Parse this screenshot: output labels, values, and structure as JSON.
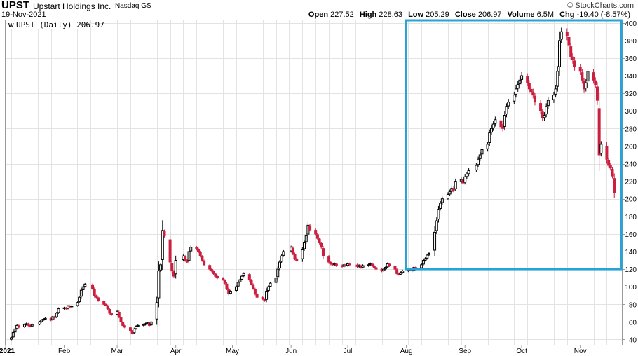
{
  "header": {
    "symbol": "UPST",
    "company": "Upstart Holdings Inc.",
    "exchange": "Nasdaq GS",
    "date": "19-Nov-2021",
    "brand": "© StockCharts.com"
  },
  "quote": {
    "open_label": "Open",
    "open": "227.52",
    "high_label": "High",
    "high": "228.63",
    "low_label": "Low",
    "low": "205.29",
    "close_label": "Close",
    "close": "206.97",
    "volume_label": "Volume",
    "volume": "6.5M",
    "chg_label": "Chg",
    "chg": "-19.40 (-8.57%)"
  },
  "legend": {
    "label": "UPST (Daily) 206.97"
  },
  "colors": {
    "up": "#000000",
    "down": "#cc1f3f",
    "highlight": "#27a3d6",
    "grid": "#e3e3e3"
  },
  "chart_data": {
    "type": "candlestick",
    "title": "UPST (Daily) 206.97",
    "x_tick_labels": [
      "2021",
      "Feb",
      "Mar",
      "Apr",
      "May",
      "Jun",
      "Jul",
      "Aug",
      "Sep",
      "Oct",
      "Nov"
    ],
    "y_ticks": [
      40,
      60,
      80,
      100,
      120,
      140,
      160,
      180,
      200,
      220,
      240,
      260,
      280,
      300,
      320,
      340,
      360,
      380,
      400
    ],
    "ylim": [
      34,
      403
    ],
    "grid": true,
    "highlight_box": {
      "from": "2021-08-02",
      "to": "2021-11-19",
      "y_from": 120,
      "y_to": 403
    },
    "closes": [
      [
        "2021-01-04",
        42
      ],
      [
        "2021-01-05",
        48
      ],
      [
        "2021-01-06",
        52
      ],
      [
        "2021-01-07",
        56
      ],
      [
        "2021-01-08",
        54
      ],
      [
        "2021-01-11",
        57
      ],
      [
        "2021-01-12",
        58
      ],
      [
        "2021-01-13",
        56
      ],
      [
        "2021-01-14",
        55
      ],
      [
        "2021-01-15",
        57
      ],
      [
        "2021-01-19",
        60
      ],
      [
        "2021-01-20",
        62
      ],
      [
        "2021-01-21",
        63
      ],
      [
        "2021-01-22",
        64
      ],
      [
        "2021-01-25",
        62
      ],
      [
        "2021-01-26",
        66
      ],
      [
        "2021-01-27",
        65
      ],
      [
        "2021-01-28",
        70
      ],
      [
        "2021-01-29",
        75
      ],
      [
        "2021-02-01",
        76
      ],
      [
        "2021-02-02",
        75
      ],
      [
        "2021-02-03",
        78
      ],
      [
        "2021-02-04",
        77
      ],
      [
        "2021-02-05",
        78
      ],
      [
        "2021-02-08",
        82
      ],
      [
        "2021-02-09",
        88
      ],
      [
        "2021-02-10",
        96
      ],
      [
        "2021-02-11",
        100
      ],
      [
        "2021-02-12",
        103
      ],
      [
        "2021-02-16",
        98
      ],
      [
        "2021-02-17",
        90
      ],
      [
        "2021-02-18",
        88
      ],
      [
        "2021-02-19",
        84
      ],
      [
        "2021-02-22",
        80
      ],
      [
        "2021-02-23",
        79
      ],
      [
        "2021-02-24",
        75
      ],
      [
        "2021-02-25",
        70
      ],
      [
        "2021-02-26",
        68
      ],
      [
        "2021-03-01",
        72
      ],
      [
        "2021-03-02",
        66
      ],
      [
        "2021-03-03",
        60
      ],
      [
        "2021-03-04",
        56
      ],
      [
        "2021-03-05",
        54
      ],
      [
        "2021-03-08",
        50
      ],
      [
        "2021-03-09",
        47
      ],
      [
        "2021-03-10",
        52
      ],
      [
        "2021-03-11",
        55
      ],
      [
        "2021-03-12",
        56
      ],
      [
        "2021-03-15",
        57
      ],
      [
        "2021-03-16",
        58
      ],
      [
        "2021-03-17",
        59
      ],
      [
        "2021-03-18",
        56
      ],
      [
        "2021-03-19",
        60
      ],
      [
        "2021-03-22",
        82
      ],
      [
        "2021-03-23",
        118
      ],
      [
        "2021-03-24",
        125
      ],
      [
        "2021-03-25",
        164
      ],
      [
        "2021-03-26",
        158
      ],
      [
        "2021-03-29",
        128
      ],
      [
        "2021-03-30",
        118
      ],
      [
        "2021-03-31",
        112
      ],
      [
        "2021-04-01",
        130
      ],
      [
        "2021-04-05",
        135
      ],
      [
        "2021-04-06",
        130
      ],
      [
        "2021-04-07",
        128
      ],
      [
        "2021-04-08",
        140
      ],
      [
        "2021-04-09",
        145
      ],
      [
        "2021-04-12",
        143
      ],
      [
        "2021-04-13",
        140
      ],
      [
        "2021-04-14",
        135
      ],
      [
        "2021-04-15",
        130
      ],
      [
        "2021-04-16",
        125
      ],
      [
        "2021-04-19",
        120
      ],
      [
        "2021-04-20",
        118
      ],
      [
        "2021-04-21",
        115
      ],
      [
        "2021-04-22",
        112
      ],
      [
        "2021-04-23",
        110
      ],
      [
        "2021-04-26",
        108
      ],
      [
        "2021-04-27",
        104
      ],
      [
        "2021-04-28",
        98
      ],
      [
        "2021-04-29",
        92
      ],
      [
        "2021-04-30",
        95
      ],
      [
        "2021-05-03",
        100
      ],
      [
        "2021-05-04",
        105
      ],
      [
        "2021-05-05",
        108
      ],
      [
        "2021-05-06",
        112
      ],
      [
        "2021-05-07",
        115
      ],
      [
        "2021-05-10",
        108
      ],
      [
        "2021-05-11",
        103
      ],
      [
        "2021-05-12",
        98
      ],
      [
        "2021-05-13",
        92
      ],
      [
        "2021-05-14",
        88
      ],
      [
        "2021-05-17",
        86
      ],
      [
        "2021-05-18",
        84
      ],
      [
        "2021-05-19",
        95
      ],
      [
        "2021-05-20",
        100
      ],
      [
        "2021-05-21",
        104
      ],
      [
        "2021-05-24",
        110
      ],
      [
        "2021-05-25",
        120
      ],
      [
        "2021-05-26",
        128
      ],
      [
        "2021-05-27",
        135
      ],
      [
        "2021-05-28",
        140
      ],
      [
        "2021-06-01",
        145
      ],
      [
        "2021-06-02",
        138
      ],
      [
        "2021-06-03",
        132
      ],
      [
        "2021-06-04",
        130
      ],
      [
        "2021-06-07",
        142
      ],
      [
        "2021-06-08",
        150
      ],
      [
        "2021-06-09",
        158
      ],
      [
        "2021-06-10",
        170
      ],
      [
        "2021-06-11",
        165
      ],
      [
        "2021-06-14",
        160
      ],
      [
        "2021-06-15",
        155
      ],
      [
        "2021-06-16",
        150
      ],
      [
        "2021-06-17",
        145
      ],
      [
        "2021-06-18",
        135
      ],
      [
        "2021-06-21",
        128
      ],
      [
        "2021-06-22",
        126
      ],
      [
        "2021-06-23",
        125
      ],
      [
        "2021-06-24",
        126
      ],
      [
        "2021-06-25",
        124
      ],
      [
        "2021-06-28",
        123
      ],
      [
        "2021-06-29",
        125
      ],
      [
        "2021-06-30",
        124
      ],
      [
        "2021-07-01",
        126
      ],
      [
        "2021-07-02",
        125
      ],
      [
        "2021-07-06",
        123
      ],
      [
        "2021-07-07",
        124
      ],
      [
        "2021-07-08",
        122
      ],
      [
        "2021-07-09",
        124
      ],
      [
        "2021-07-12",
        125
      ],
      [
        "2021-07-13",
        126
      ],
      [
        "2021-07-14",
        124
      ],
      [
        "2021-07-15",
        122
      ],
      [
        "2021-07-16",
        120
      ],
      [
        "2021-07-19",
        118
      ],
      [
        "2021-07-20",
        120
      ],
      [
        "2021-07-21",
        122
      ],
      [
        "2021-07-22",
        126
      ],
      [
        "2021-07-23",
        124
      ],
      [
        "2021-07-26",
        120
      ],
      [
        "2021-07-27",
        115
      ],
      [
        "2021-07-28",
        114
      ],
      [
        "2021-07-29",
        116
      ],
      [
        "2021-07-30",
        118
      ],
      [
        "2021-08-02",
        119
      ],
      [
        "2021-08-03",
        120
      ],
      [
        "2021-08-04",
        118
      ],
      [
        "2021-08-05",
        122
      ],
      [
        "2021-08-06",
        121
      ],
      [
        "2021-08-09",
        125
      ],
      [
        "2021-08-10",
        130
      ],
      [
        "2021-08-11",
        132
      ],
      [
        "2021-08-12",
        136
      ],
      [
        "2021-08-13",
        138
      ],
      [
        "2021-08-16",
        162
      ],
      [
        "2021-08-17",
        175
      ],
      [
        "2021-08-18",
        188
      ],
      [
        "2021-08-19",
        195
      ],
      [
        "2021-08-20",
        200
      ],
      [
        "2021-08-23",
        205
      ],
      [
        "2021-08-24",
        208
      ],
      [
        "2021-08-25",
        212
      ],
      [
        "2021-08-26",
        210
      ],
      [
        "2021-08-27",
        220
      ],
      [
        "2021-08-30",
        222
      ],
      [
        "2021-08-31",
        218
      ],
      [
        "2021-09-01",
        225
      ],
      [
        "2021-09-02",
        228
      ],
      [
        "2021-09-03",
        232
      ],
      [
        "2021-09-07",
        238
      ],
      [
        "2021-09-08",
        245
      ],
      [
        "2021-09-09",
        250
      ],
      [
        "2021-09-10",
        256
      ],
      [
        "2021-09-13",
        262
      ],
      [
        "2021-09-14",
        275
      ],
      [
        "2021-09-15",
        280
      ],
      [
        "2021-09-16",
        285
      ],
      [
        "2021-09-17",
        290
      ],
      [
        "2021-09-20",
        282
      ],
      [
        "2021-09-21",
        280
      ],
      [
        "2021-09-22",
        295
      ],
      [
        "2021-09-23",
        305
      ],
      [
        "2021-09-24",
        310
      ],
      [
        "2021-09-27",
        318
      ],
      [
        "2021-09-28",
        325
      ],
      [
        "2021-09-29",
        330
      ],
      [
        "2021-09-30",
        335
      ],
      [
        "2021-10-01",
        340
      ],
      [
        "2021-10-04",
        332
      ],
      [
        "2021-10-05",
        325
      ],
      [
        "2021-10-06",
        322
      ],
      [
        "2021-10-07",
        318
      ],
      [
        "2021-10-08",
        310
      ],
      [
        "2021-10-11",
        300
      ],
      [
        "2021-10-12",
        292
      ],
      [
        "2021-10-13",
        295
      ],
      [
        "2021-10-14",
        305
      ],
      [
        "2021-10-15",
        312
      ],
      [
        "2021-10-18",
        318
      ],
      [
        "2021-10-19",
        325
      ],
      [
        "2021-10-20",
        345
      ],
      [
        "2021-10-21",
        380
      ],
      [
        "2021-10-22",
        390
      ],
      [
        "2021-10-25",
        385
      ],
      [
        "2021-10-26",
        375
      ],
      [
        "2021-10-27",
        362
      ],
      [
        "2021-10-28",
        358
      ],
      [
        "2021-10-29",
        350
      ],
      [
        "2021-11-01",
        345
      ],
      [
        "2021-11-02",
        335
      ],
      [
        "2021-11-03",
        325
      ],
      [
        "2021-11-04",
        332
      ],
      [
        "2021-11-05",
        345
      ],
      [
        "2021-11-08",
        335
      ],
      [
        "2021-11-09",
        330
      ],
      [
        "2021-11-10",
        312
      ],
      [
        "2021-11-11",
        250
      ],
      [
        "2021-11-12",
        262
      ],
      [
        "2021-11-15",
        245
      ],
      [
        "2021-11-16",
        238
      ],
      [
        "2021-11-17",
        235
      ],
      [
        "2021-11-18",
        226
      ],
      [
        "2021-11-19",
        206.97
      ]
    ]
  }
}
